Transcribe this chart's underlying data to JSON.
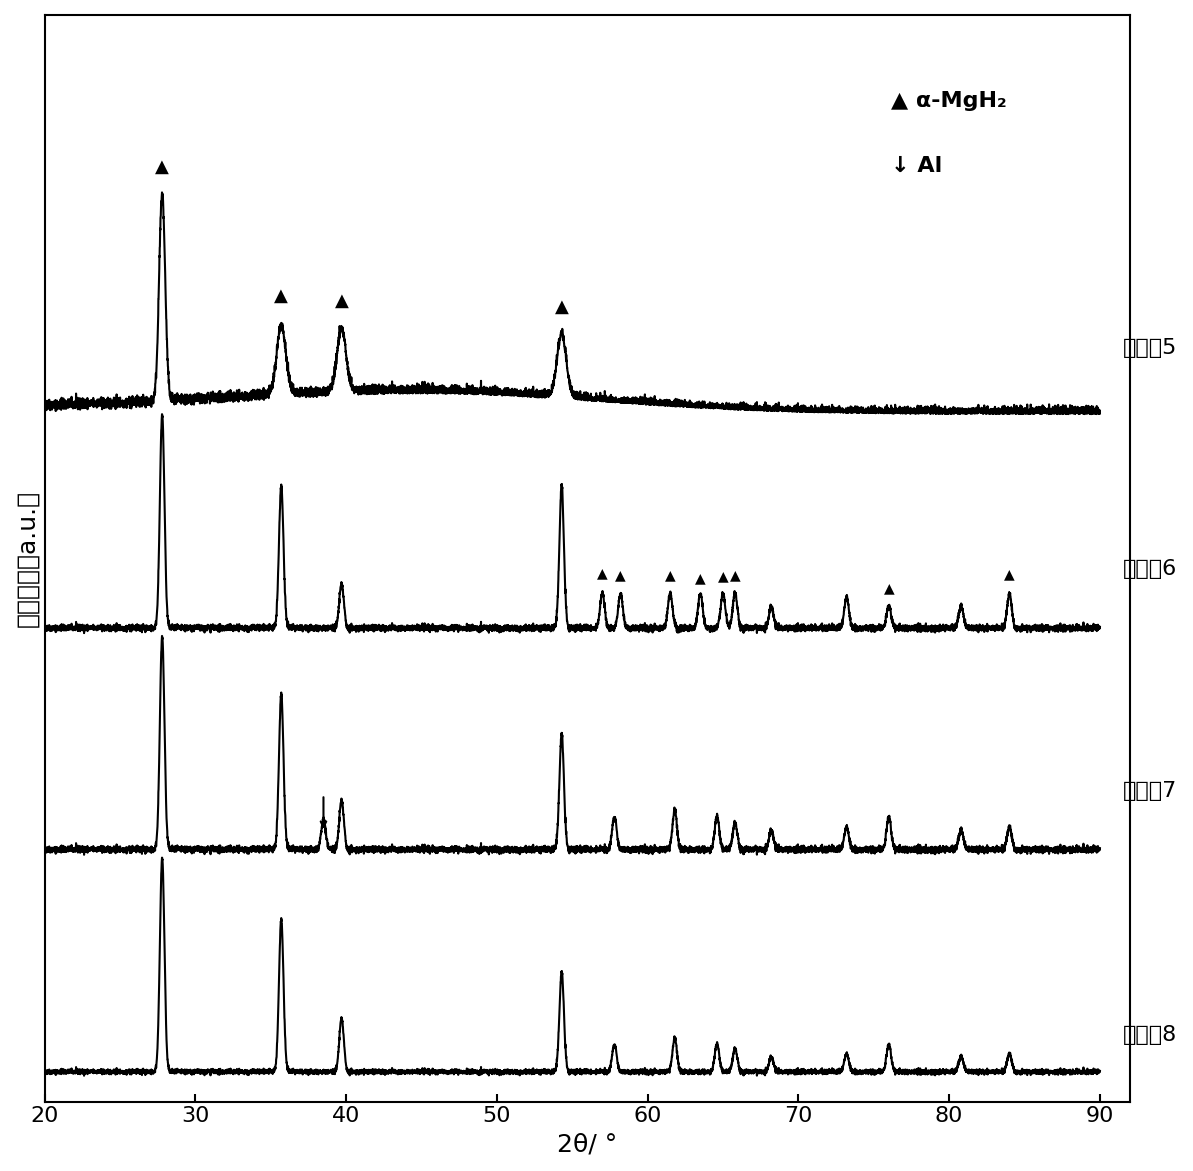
{
  "title": "",
  "xlabel": "2θ/ °",
  "ylabel": "相对强度（a.u.）",
  "xlim": [
    20,
    90
  ],
  "xmin": 20,
  "xmax": 90,
  "xticks": [
    20,
    30,
    40,
    50,
    60,
    70,
    80,
    90
  ],
  "series_labels": [
    "实施例5",
    "实施例6",
    "实施例7",
    "实施例8"
  ],
  "offsets": [
    3.0,
    2.0,
    1.0,
    0.0
  ],
  "background_color": "#ffffff",
  "line_color": "#000000",
  "font_size": 16,
  "label_font_size": 18
}
